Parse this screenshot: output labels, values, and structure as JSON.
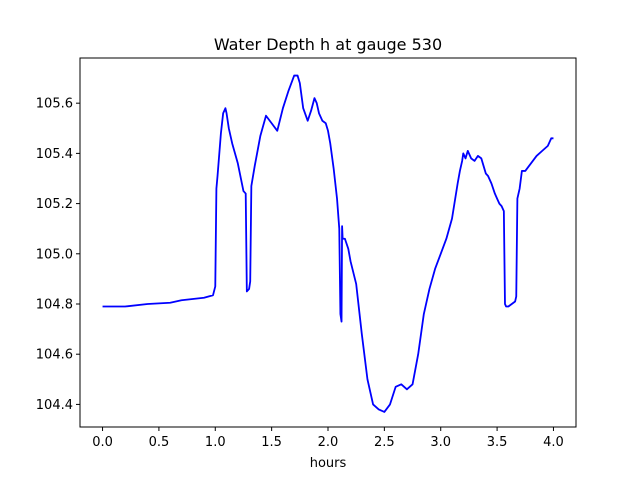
{
  "chart_data": {
    "type": "line",
    "title": "Water Depth h at gauge 530",
    "xlabel": "hours",
    "ylabel": "",
    "xlim": [
      -0.2,
      4.2
    ],
    "ylim": [
      104.31,
      105.78
    ],
    "xticks": [
      0.0,
      0.5,
      1.0,
      1.5,
      2.0,
      2.5,
      3.0,
      3.5,
      4.0
    ],
    "xtick_labels": [
      "0.0",
      "0.5",
      "1.0",
      "1.5",
      "2.0",
      "2.5",
      "3.0",
      "3.5",
      "4.0"
    ],
    "yticks": [
      104.4,
      104.6,
      104.8,
      105.0,
      105.2,
      105.4,
      105.6
    ],
    "ytick_labels": [
      "104.4",
      "104.6",
      "104.8",
      "105.0",
      "105.2",
      "105.4",
      "105.6"
    ],
    "grid": false,
    "series": [
      {
        "color": "#0000ff",
        "x": [
          0.0,
          0.2,
          0.4,
          0.6,
          0.7,
          0.8,
          0.9,
          0.98,
          1.0,
          1.01,
          1.02,
          1.05,
          1.07,
          1.09,
          1.1,
          1.12,
          1.15,
          1.2,
          1.25,
          1.27,
          1.28,
          1.3,
          1.31,
          1.32,
          1.35,
          1.4,
          1.45,
          1.5,
          1.55,
          1.6,
          1.65,
          1.7,
          1.73,
          1.75,
          1.78,
          1.82,
          1.85,
          1.88,
          1.9,
          1.92,
          1.95,
          1.98,
          2.0,
          2.02,
          2.05,
          2.08,
          2.1,
          2.11,
          2.12,
          2.125,
          2.13,
          2.14,
          2.15,
          2.18,
          2.2,
          2.25,
          2.3,
          2.35,
          2.4,
          2.45,
          2.5,
          2.55,
          2.6,
          2.65,
          2.7,
          2.75,
          2.8,
          2.85,
          2.9,
          2.95,
          3.0,
          3.05,
          3.1,
          3.15,
          3.17,
          3.19,
          3.2,
          3.22,
          3.24,
          3.27,
          3.3,
          3.33,
          3.36,
          3.38,
          3.4,
          3.42,
          3.45,
          3.48,
          3.5,
          3.52,
          3.54,
          3.56,
          3.57,
          3.58,
          3.6,
          3.63,
          3.66,
          3.67,
          3.68,
          3.7,
          3.72,
          3.75,
          3.8,
          3.85,
          3.9,
          3.95,
          3.98,
          4.0
        ],
        "y": [
          104.79,
          104.79,
          104.8,
          104.805,
          104.815,
          104.82,
          104.825,
          104.835,
          104.87,
          105.26,
          105.31,
          105.48,
          105.56,
          105.58,
          105.56,
          105.5,
          105.44,
          105.36,
          105.25,
          105.24,
          104.85,
          104.86,
          104.89,
          105.27,
          105.35,
          105.47,
          105.55,
          105.52,
          105.49,
          105.58,
          105.65,
          105.71,
          105.71,
          105.68,
          105.58,
          105.53,
          105.57,
          105.62,
          105.6,
          105.56,
          105.53,
          105.52,
          105.49,
          105.44,
          105.34,
          105.22,
          105.1,
          104.76,
          104.73,
          105.11,
          105.06,
          105.06,
          105.06,
          105.02,
          104.97,
          104.88,
          104.68,
          104.5,
          104.4,
          104.38,
          104.37,
          104.4,
          104.47,
          104.48,
          104.46,
          104.48,
          104.6,
          104.76,
          104.86,
          104.94,
          105.0,
          105.06,
          105.14,
          105.28,
          105.33,
          105.37,
          105.4,
          105.38,
          105.41,
          105.38,
          105.37,
          105.39,
          105.38,
          105.35,
          105.32,
          105.31,
          105.28,
          105.24,
          105.22,
          105.2,
          105.19,
          105.17,
          104.8,
          104.79,
          104.79,
          104.8,
          104.81,
          104.83,
          105.22,
          105.26,
          105.33,
          105.33,
          105.36,
          105.39,
          105.41,
          105.43,
          105.46,
          105.46
        ]
      }
    ]
  }
}
